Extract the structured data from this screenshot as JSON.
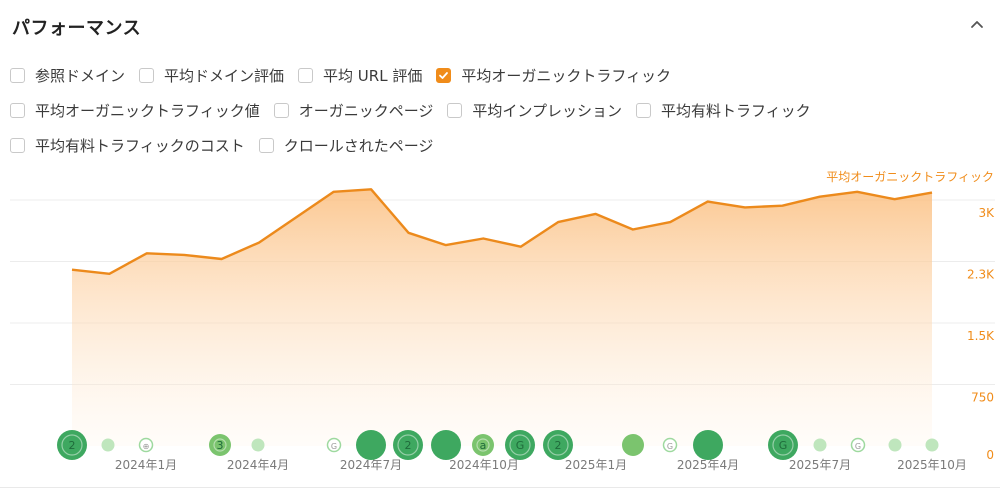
{
  "section": {
    "title": "パフォーマンス",
    "collapse_icon": "chevron-up-icon"
  },
  "metric_options": [
    [
      {
        "label": "参照ドメイン",
        "checked": false
      },
      {
        "label": "平均ドメイン評価",
        "checked": false
      },
      {
        "label": "平均 URL 評価",
        "checked": false
      },
      {
        "label": "平均オーガニックトラフィック",
        "checked": true
      }
    ],
    [
      {
        "label": "平均オーガニックトラフィック値",
        "checked": false
      },
      {
        "label": "オーガニックページ",
        "checked": false
      },
      {
        "label": "平均インプレッション",
        "checked": false
      },
      {
        "label": "平均有料トラフィック",
        "checked": false
      }
    ],
    [
      {
        "label": "平均有料トラフィックのコスト",
        "checked": false
      },
      {
        "label": "クロールされたページ",
        "checked": false
      }
    ]
  ],
  "colors": {
    "accent": "#f08c1a",
    "marker_dark": "#3ea860",
    "marker_light": "#9ed99f"
  },
  "chart_data": {
    "type": "area",
    "series": [
      {
        "name": "平均オーガニックトラフィック",
        "values": [
          2150,
          2100,
          2350,
          2330,
          2280,
          2480,
          2790,
          3100,
          3130,
          2600,
          2450,
          2530,
          2430,
          2730,
          2830,
          2640,
          2730,
          2980,
          2910,
          2930,
          3040,
          3100,
          3010,
          3090
        ]
      }
    ],
    "x_tick_labels": [
      "2024年1月",
      "2024年4月",
      "2024年7月",
      "2024年10月",
      "2025年1月",
      "2025年4月",
      "2025年7月",
      "2025年10月"
    ],
    "y_tick_labels": [
      "3K",
      "2.3K",
      "1.5K",
      "750",
      "0"
    ],
    "ylim": [
      0,
      3000
    ],
    "grid": true,
    "series_label_position": "top-right",
    "event_markers": [
      {
        "label": "2",
        "style": "dark",
        "size": "large"
      },
      {
        "label": "",
        "style": "light",
        "size": "small"
      },
      {
        "label": "⊕",
        "style": "ring",
        "size": "small"
      },
      {
        "label": "3",
        "style": "medium",
        "size": "medium"
      },
      {
        "label": "",
        "style": "light",
        "size": "small"
      },
      {
        "label": "G",
        "style": "ring",
        "size": "small"
      },
      {
        "label": "",
        "style": "dark",
        "size": "large"
      },
      {
        "label": "2",
        "style": "dark",
        "size": "large"
      },
      {
        "label": "",
        "style": "dark",
        "size": "large"
      },
      {
        "label": "a",
        "style": "medium",
        "size": "medium"
      },
      {
        "label": "G",
        "style": "dark",
        "size": "large"
      },
      {
        "label": "2",
        "style": "dark",
        "size": "large"
      },
      {
        "label": "",
        "style": "medium",
        "size": "medium"
      },
      {
        "label": "G",
        "style": "ring",
        "size": "small"
      },
      {
        "label": "",
        "style": "dark",
        "size": "large"
      },
      {
        "label": "G",
        "style": "dark",
        "size": "large"
      },
      {
        "label": "",
        "style": "light",
        "size": "small"
      },
      {
        "label": "G",
        "style": "ring",
        "size": "small"
      },
      {
        "label": "",
        "style": "light",
        "size": "small"
      },
      {
        "label": "",
        "style": "light",
        "size": "small"
      }
    ]
  }
}
